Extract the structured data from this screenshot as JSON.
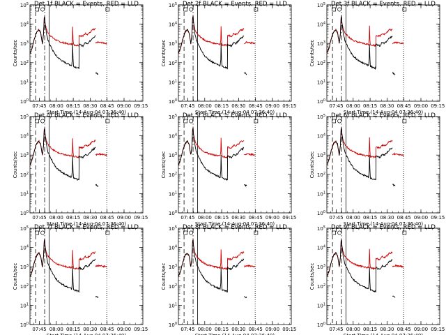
{
  "figure": {
    "panel_titles": [
      "Det 1f BLACK = Events, RED = LLD",
      "Det 2f BLACK = Events, RED = LLD",
      "Det 3f BLACK = Events, RED = LLD",
      "Det 4f BLACK = Events, RED = LLD",
      "Det 5f BLACK = Events, RED = LLD",
      "Det 6f BLACK = Events, RED = LLD",
      "Det 7f BLACK = Events, RED = LLD",
      "Det 8f BLACK = Events, RED = LLD",
      "Det 9f BLACK = Events, RED = LLD"
    ],
    "ylabel": "Counts/sec",
    "xlabel": "Start Time (14-Aug-04 07:36:40)",
    "x_tick_labels": [
      "07:45",
      "08:00",
      "08:15",
      "08:30",
      "08:45",
      "09:00",
      "09:15"
    ],
    "y_tick_labels": [
      {
        "base": "10",
        "exp": "5"
      },
      {
        "base": "10",
        "exp": "4"
      },
      {
        "base": "10",
        "exp": "3"
      },
      {
        "base": "10",
        "exp": "2"
      },
      {
        "base": "10",
        "exp": "1"
      },
      {
        "base": "10",
        "exp": "0"
      }
    ],
    "colors": {
      "events": "#000000",
      "lld": "#cc0000",
      "background": "#ffffff"
    }
  },
  "chart_data": {
    "type": "line",
    "title": "Det 1f BLACK = Events, RED = LLD",
    "xlabel": "Start Time (14-Aug-04 07:36:40)",
    "ylabel": "Counts/sec",
    "x_unit": "minutes after 07:36:40",
    "xlim": [
      0,
      100
    ],
    "ylim": [
      1,
      100000
    ],
    "y_scale": "log",
    "grid": false,
    "panels": 9,
    "panel_layout": "3x3 grid",
    "vertical_markers": [
      {
        "x": 5,
        "style": "dashed"
      },
      {
        "x": 13,
        "style": "dash-dot"
      },
      {
        "x": 17,
        "style": "solid"
      },
      {
        "x": 68,
        "style": "dotted"
      }
    ],
    "series": [
      {
        "name": "Events",
        "color": "#000000",
        "points": [
          [
            0,
            300
          ],
          [
            2,
            600
          ],
          [
            4,
            1800
          ],
          [
            6,
            4000
          ],
          [
            8,
            5200
          ],
          [
            9.5,
            3600
          ],
          [
            10.5,
            1500
          ],
          [
            11,
            1000
          ],
          [
            12,
            3000
          ],
          [
            12.6,
            20000
          ],
          [
            13,
            26000
          ],
          [
            13.4,
            12000
          ],
          [
            14.5,
            3500
          ],
          [
            16,
            1400
          ],
          [
            18,
            800
          ],
          [
            20,
            450
          ],
          [
            22,
            290
          ],
          [
            24,
            200
          ],
          [
            26,
            160
          ],
          [
            28,
            130
          ],
          [
            30,
            110
          ],
          [
            32,
            95
          ],
          [
            34,
            85
          ],
          [
            36,
            75
          ],
          [
            37,
            70
          ],
          [
            37.5,
            150
          ],
          [
            37.8,
            1000
          ],
          [
            38.2,
            150
          ],
          [
            38.6,
            65
          ],
          [
            40,
            60
          ],
          [
            42,
            55
          ],
          [
            43.4,
            50
          ],
          [
            43.6,
            900
          ],
          [
            45,
            800
          ],
          [
            47,
            750
          ],
          [
            49,
            1100
          ],
          [
            51,
            1000
          ],
          [
            53,
            1300
          ],
          [
            55,
            1800
          ],
          [
            56,
            2100
          ],
          [
            57,
            2000
          ],
          [
            57.5,
            2300
          ],
          [
            58,
            2400
          ]
        ],
        "segments_after_gap": [
          [
            [
              58.2,
              30
            ],
            [
              60.5,
              25
            ]
          ]
        ]
      },
      {
        "name": "LLD",
        "color": "#cc0000",
        "points": [
          [
            0,
            300
          ],
          [
            2,
            600
          ],
          [
            4,
            1800
          ],
          [
            6,
            4000
          ],
          [
            8,
            5200
          ],
          [
            9.5,
            3600
          ],
          [
            10.5,
            1500
          ],
          [
            11,
            1000
          ],
          [
            12,
            3000
          ],
          [
            12.6,
            20000
          ],
          [
            13,
            26000
          ],
          [
            13.4,
            12000
          ],
          [
            14.5,
            5500
          ],
          [
            16,
            3500
          ],
          [
            18,
            2600
          ],
          [
            20,
            2000
          ],
          [
            22,
            1650
          ],
          [
            24,
            1400
          ],
          [
            26,
            1250
          ],
          [
            28,
            1150
          ],
          [
            30,
            1070
          ],
          [
            32,
            1000
          ],
          [
            34,
            950
          ],
          [
            36,
            900
          ],
          [
            37,
            880
          ],
          [
            37.5,
            1500
          ],
          [
            37.8,
            8000
          ],
          [
            38.2,
            1500
          ],
          [
            38.6,
            860
          ],
          [
            40,
            820
          ],
          [
            42,
            800
          ],
          [
            43.4,
            780
          ],
          [
            43.6,
            2600
          ],
          [
            45,
            2500
          ],
          [
            47,
            2400
          ],
          [
            49,
            3300
          ],
          [
            51,
            3000
          ],
          [
            53,
            3600
          ],
          [
            55,
            4800
          ],
          [
            56,
            5300
          ],
          [
            57,
            5000
          ],
          [
            57.5,
            5500
          ],
          [
            58,
            5700
          ]
        ],
        "segments_after_gap": [
          [
            [
              58.2,
              1000
            ],
            [
              60,
              1150
            ],
            [
              63,
              1100
            ],
            [
              66,
              1050
            ],
            [
              68,
              980
            ]
          ]
        ]
      }
    ]
  }
}
